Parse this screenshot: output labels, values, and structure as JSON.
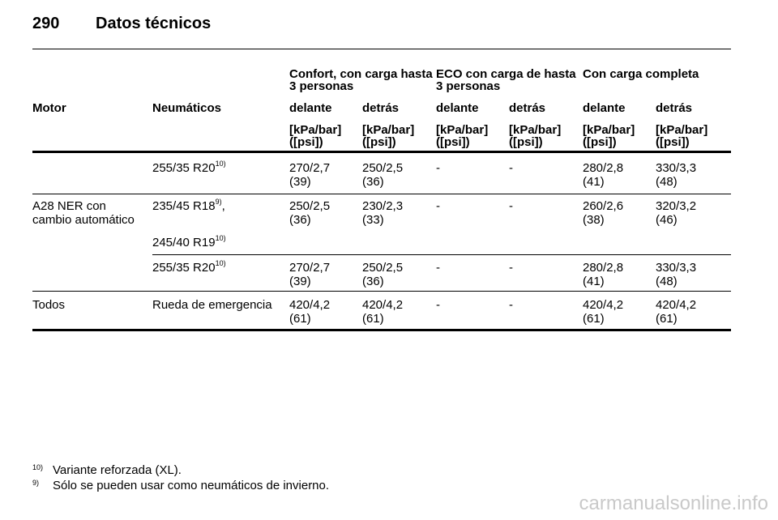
{
  "page": {
    "number": "290",
    "title": "Datos técnicos"
  },
  "table": {
    "group_headers": [
      "Confort, con carga hasta 3 personas",
      "ECO con carga de hasta 3 personas",
      "Con carga completa"
    ],
    "col_headers": [
      "Motor",
      "Neumáticos",
      "delante",
      "detrás",
      "delante",
      "detrás",
      "delante",
      "detrás"
    ],
    "unit_line1": "[kPa/bar]",
    "unit_line2": "([psi])",
    "rows": [
      {
        "motor": "",
        "tyre": "255/35 R20",
        "tyre_sup": "10)",
        "vals": [
          [
            "270/2,7",
            "(39)"
          ],
          [
            "250/2,5",
            "(36)"
          ],
          [
            "-",
            ""
          ],
          [
            "-",
            ""
          ],
          [
            "280/2,8",
            "(41)"
          ],
          [
            "330/3,3",
            "(48)"
          ]
        ]
      },
      {
        "motor_l1": "A28 NER con",
        "motor_l2": "cambio automático",
        "tyre": "235/45 R18",
        "tyre_sup": "9)",
        "tyre_suffix": ",",
        "tyre2": "245/40 R19",
        "tyre2_sup": "10)",
        "vals": [
          [
            "250/2,5",
            "(36)"
          ],
          [
            "230/2,3",
            "(33)"
          ],
          [
            "-",
            ""
          ],
          [
            "-",
            ""
          ],
          [
            "260/2,6",
            "(38)"
          ],
          [
            "320/3,2",
            "(46)"
          ]
        ]
      },
      {
        "motor": "",
        "tyre": "255/35 R20",
        "tyre_sup": "10)",
        "vals": [
          [
            "270/2,7",
            "(39)"
          ],
          [
            "250/2,5",
            "(36)"
          ],
          [
            "-",
            ""
          ],
          [
            "-",
            ""
          ],
          [
            "280/2,8",
            "(41)"
          ],
          [
            "330/3,3",
            "(48)"
          ]
        ]
      },
      {
        "motor": "Todos",
        "tyre": "Rueda de emergencia",
        "vals": [
          [
            "420/4,2",
            "(61)"
          ],
          [
            "420/4,2",
            "(61)"
          ],
          [
            "-",
            ""
          ],
          [
            "-",
            ""
          ],
          [
            "420/4,2",
            "(61)"
          ],
          [
            "420/4,2",
            "(61)"
          ]
        ]
      }
    ]
  },
  "footnotes": [
    {
      "mark": "10)",
      "text": "Variante reforzada (XL)."
    },
    {
      "mark": "9)",
      "text": "Sólo se pueden usar como neumáticos de invierno."
    }
  ],
  "watermark": "carmanualsonline.info"
}
